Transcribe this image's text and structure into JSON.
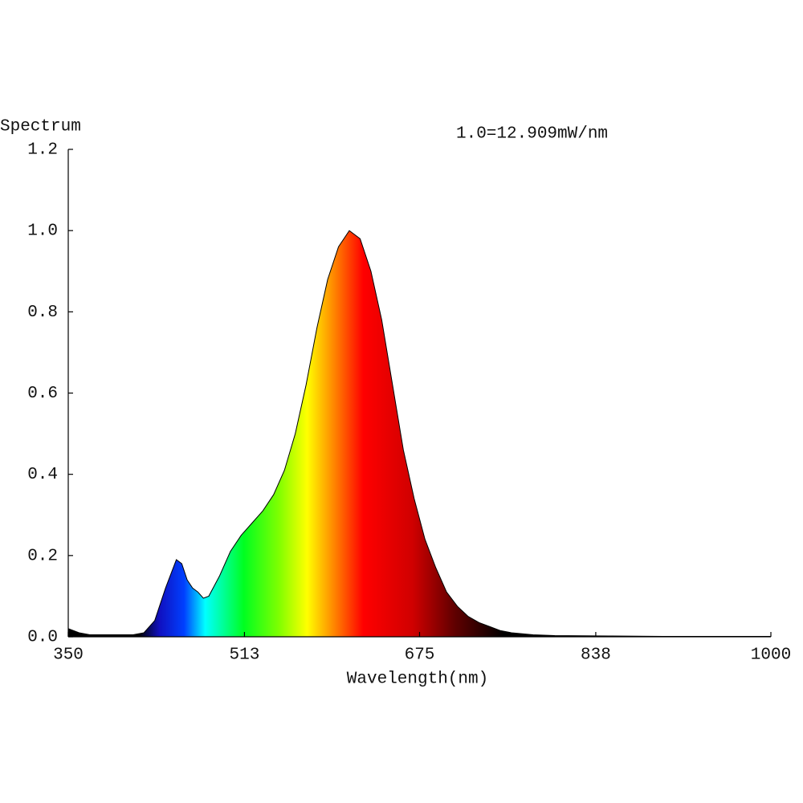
{
  "chart_data": {
    "type": "area",
    "ylabel": "Spectrum",
    "xlabel": "Wavelength(nm)",
    "annotation": "1.0=12.909mW/nm",
    "x": [
      350,
      360,
      370,
      380,
      390,
      400,
      410,
      420,
      430,
      440,
      450,
      455,
      460,
      465,
      470,
      475,
      480,
      490,
      500,
      510,
      520,
      530,
      540,
      550,
      560,
      570,
      580,
      590,
      600,
      610,
      620,
      630,
      640,
      650,
      660,
      670,
      680,
      690,
      700,
      710,
      720,
      730,
      740,
      750,
      760,
      780,
      800,
      850,
      900,
      1000
    ],
    "values": [
      0.02,
      0.01,
      0.005,
      0.005,
      0.005,
      0.005,
      0.005,
      0.01,
      0.04,
      0.12,
      0.19,
      0.18,
      0.14,
      0.12,
      0.11,
      0.095,
      0.1,
      0.15,
      0.21,
      0.25,
      0.28,
      0.31,
      0.35,
      0.41,
      0.5,
      0.62,
      0.76,
      0.88,
      0.96,
      1.0,
      0.98,
      0.9,
      0.78,
      0.62,
      0.46,
      0.34,
      0.24,
      0.17,
      0.11,
      0.075,
      0.05,
      0.035,
      0.025,
      0.015,
      0.01,
      0.005,
      0.003,
      0.002,
      0.001,
      0.001
    ],
    "xlim": [
      350,
      1000
    ],
    "xticks": [
      350,
      513,
      675,
      838,
      1000
    ],
    "ylim": [
      0,
      1.2
    ],
    "yticks": [
      {
        "value": 0,
        "label": "0.0"
      },
      0.2,
      0.4,
      0.6,
      0.8,
      {
        "value": 1,
        "label": "1.0"
      },
      1.2
    ],
    "grid": false
  }
}
